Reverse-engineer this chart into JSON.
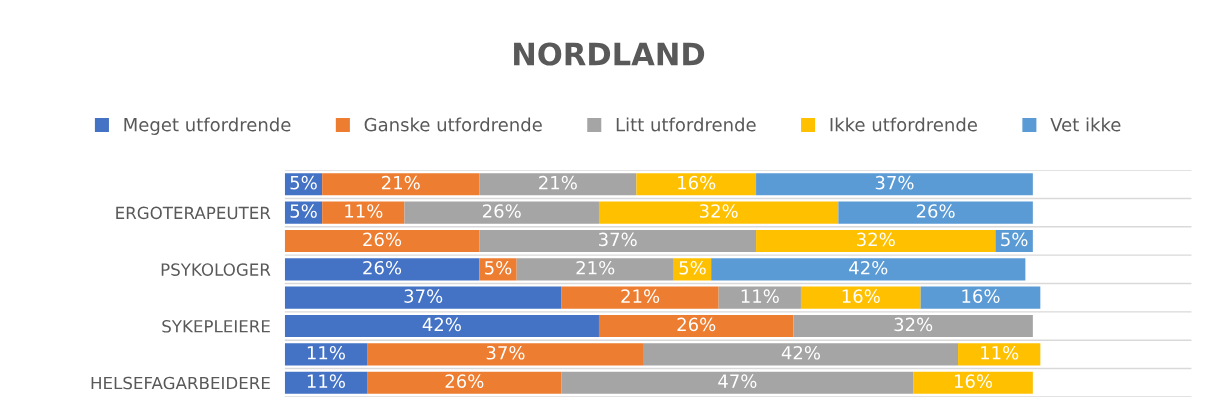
{
  "chart_data": {
    "type": "bar",
    "orientation": "horizontal",
    "stacked": true,
    "title": "NORDLAND",
    "categories": [
      null,
      "ERGOTERAPEUTER",
      null,
      "PSYKOLOGER",
      null,
      "SYKEPLEIERE",
      null,
      "HELSEFAGARBEIDERE"
    ],
    "series": [
      {
        "name": "Meget utfordrende",
        "color": "#4472c4",
        "values": [
          5,
          5,
          0,
          26,
          37,
          42,
          11,
          11
        ],
        "value_labels": [
          "5%",
          "5%",
          null,
          "26%",
          "37%",
          "42%",
          "11%",
          "11%"
        ]
      },
      {
        "name": "Ganske utfordrende",
        "color": "#ed7d31",
        "values": [
          21,
          11,
          26,
          5,
          21,
          26,
          37,
          26
        ],
        "value_labels": [
          "21%",
          "11%",
          "26%",
          "5%",
          "21%",
          "26%",
          "37%",
          "26%"
        ]
      },
      {
        "name": "Litt utfordrende",
        "color": "#a5a5a5",
        "values": [
          21,
          26,
          37,
          21,
          11,
          32,
          42,
          47
        ],
        "value_labels": [
          "21%",
          "26%",
          "37%",
          "21%",
          "11%",
          "32%",
          "42%",
          "47%"
        ]
      },
      {
        "name": "Ikke utfordrende",
        "color": "#ffc000",
        "values": [
          16,
          32,
          32,
          5,
          16,
          0,
          11,
          16
        ],
        "value_labels": [
          "16%",
          "32%",
          "32%",
          "5%",
          "16%",
          null,
          "11%",
          "16%"
        ]
      },
      {
        "name": "Vet ikke",
        "color": "#5b9bd5",
        "values": [
          37,
          26,
          5,
          42,
          16,
          0,
          0,
          0
        ],
        "value_labels": [
          "37%",
          "26%",
          "5%",
          "42%",
          "16%",
          null,
          null,
          null
        ]
      }
    ],
    "legend": "top",
    "grid": "y",
    "tick_labels": "y"
  }
}
